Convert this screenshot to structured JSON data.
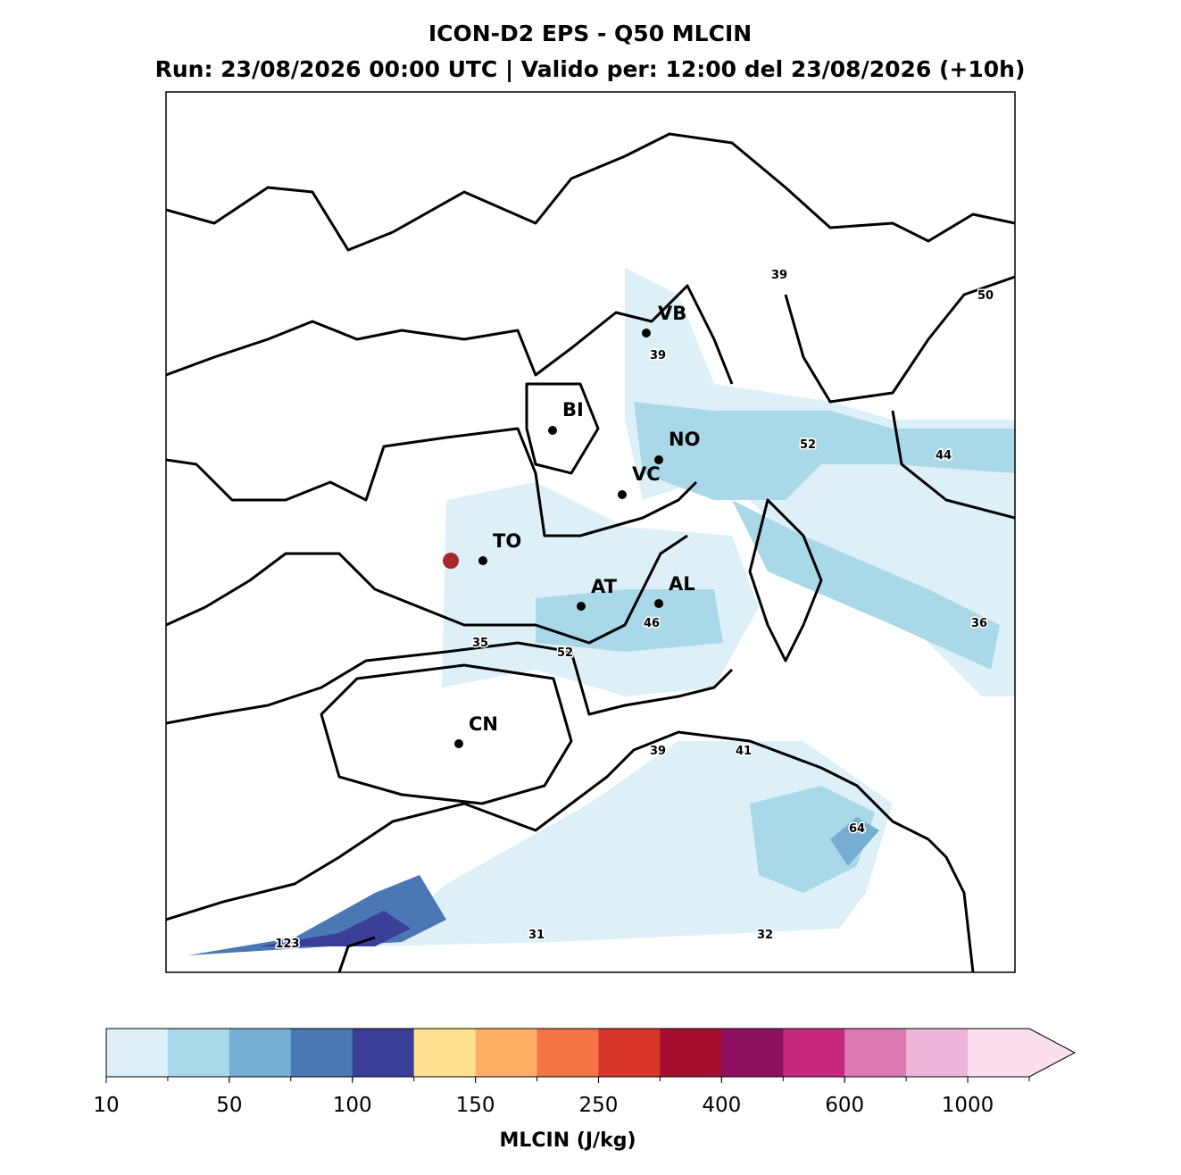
{
  "header": {
    "title": "ICON-D2 EPS - Q50 MLCIN",
    "subtitle": "Run: 23/08/2026 00:00 UTC | Valido per: 12:00 del 23/08/2026 (+10h)"
  },
  "map": {
    "cities": [
      "VB",
      "BI",
      "NO",
      "VC",
      "TO",
      "AT",
      "AL",
      "CN"
    ],
    "contour_labels": [
      39,
      50,
      39,
      52,
      44,
      46,
      36,
      35,
      52,
      39,
      41,
      64,
      123,
      31,
      32
    ]
  },
  "colorbar": {
    "colors": [
      "#ddf0f7",
      "#a9d8e8",
      "#75aed2",
      "#4a78b5",
      "#3a3e98",
      "#fee08f",
      "#fdb064",
      "#f47448",
      "#d9362b",
      "#a50e30",
      "#8f105e",
      "#c7287e",
      "#de78b0",
      "#eeb5da",
      "#fcdfef"
    ],
    "ticks": [
      10,
      50,
      100,
      150,
      250,
      400,
      600,
      1000
    ],
    "label": "MLCIN (J/kg)"
  }
}
